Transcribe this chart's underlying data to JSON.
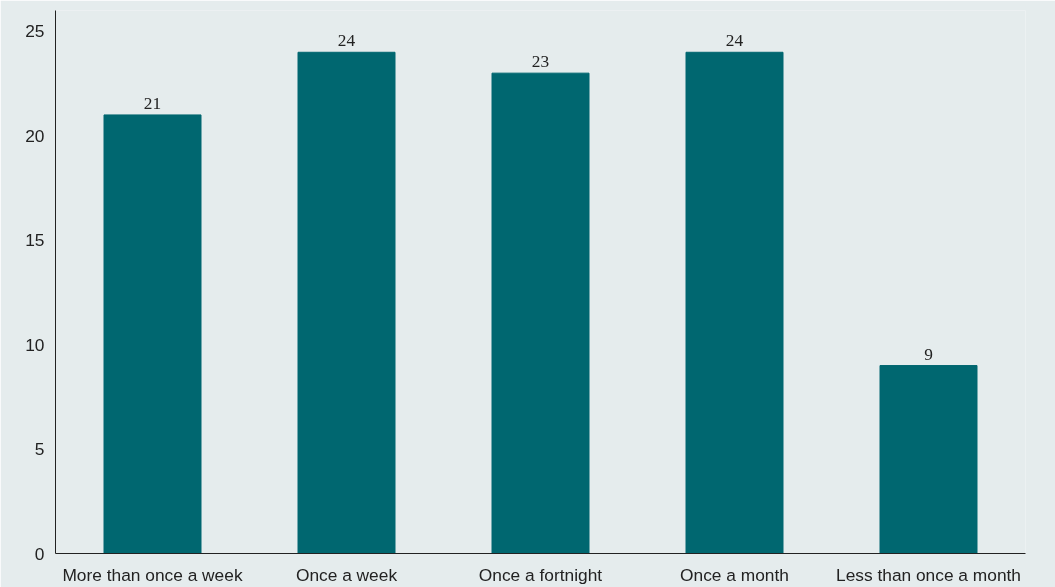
{
  "chart_data": {
    "type": "bar",
    "categories": [
      "More than once a week",
      "Once a week",
      "Once a fortnight",
      "Once a month",
      "Less than once a month"
    ],
    "values": [
      21,
      24,
      23,
      24,
      9
    ],
    "color": "#006770",
    "ylim": [
      0,
      26
    ],
    "yticks": [
      0,
      5,
      10,
      15,
      20,
      25
    ],
    "grid": false,
    "data_labels": true
  }
}
